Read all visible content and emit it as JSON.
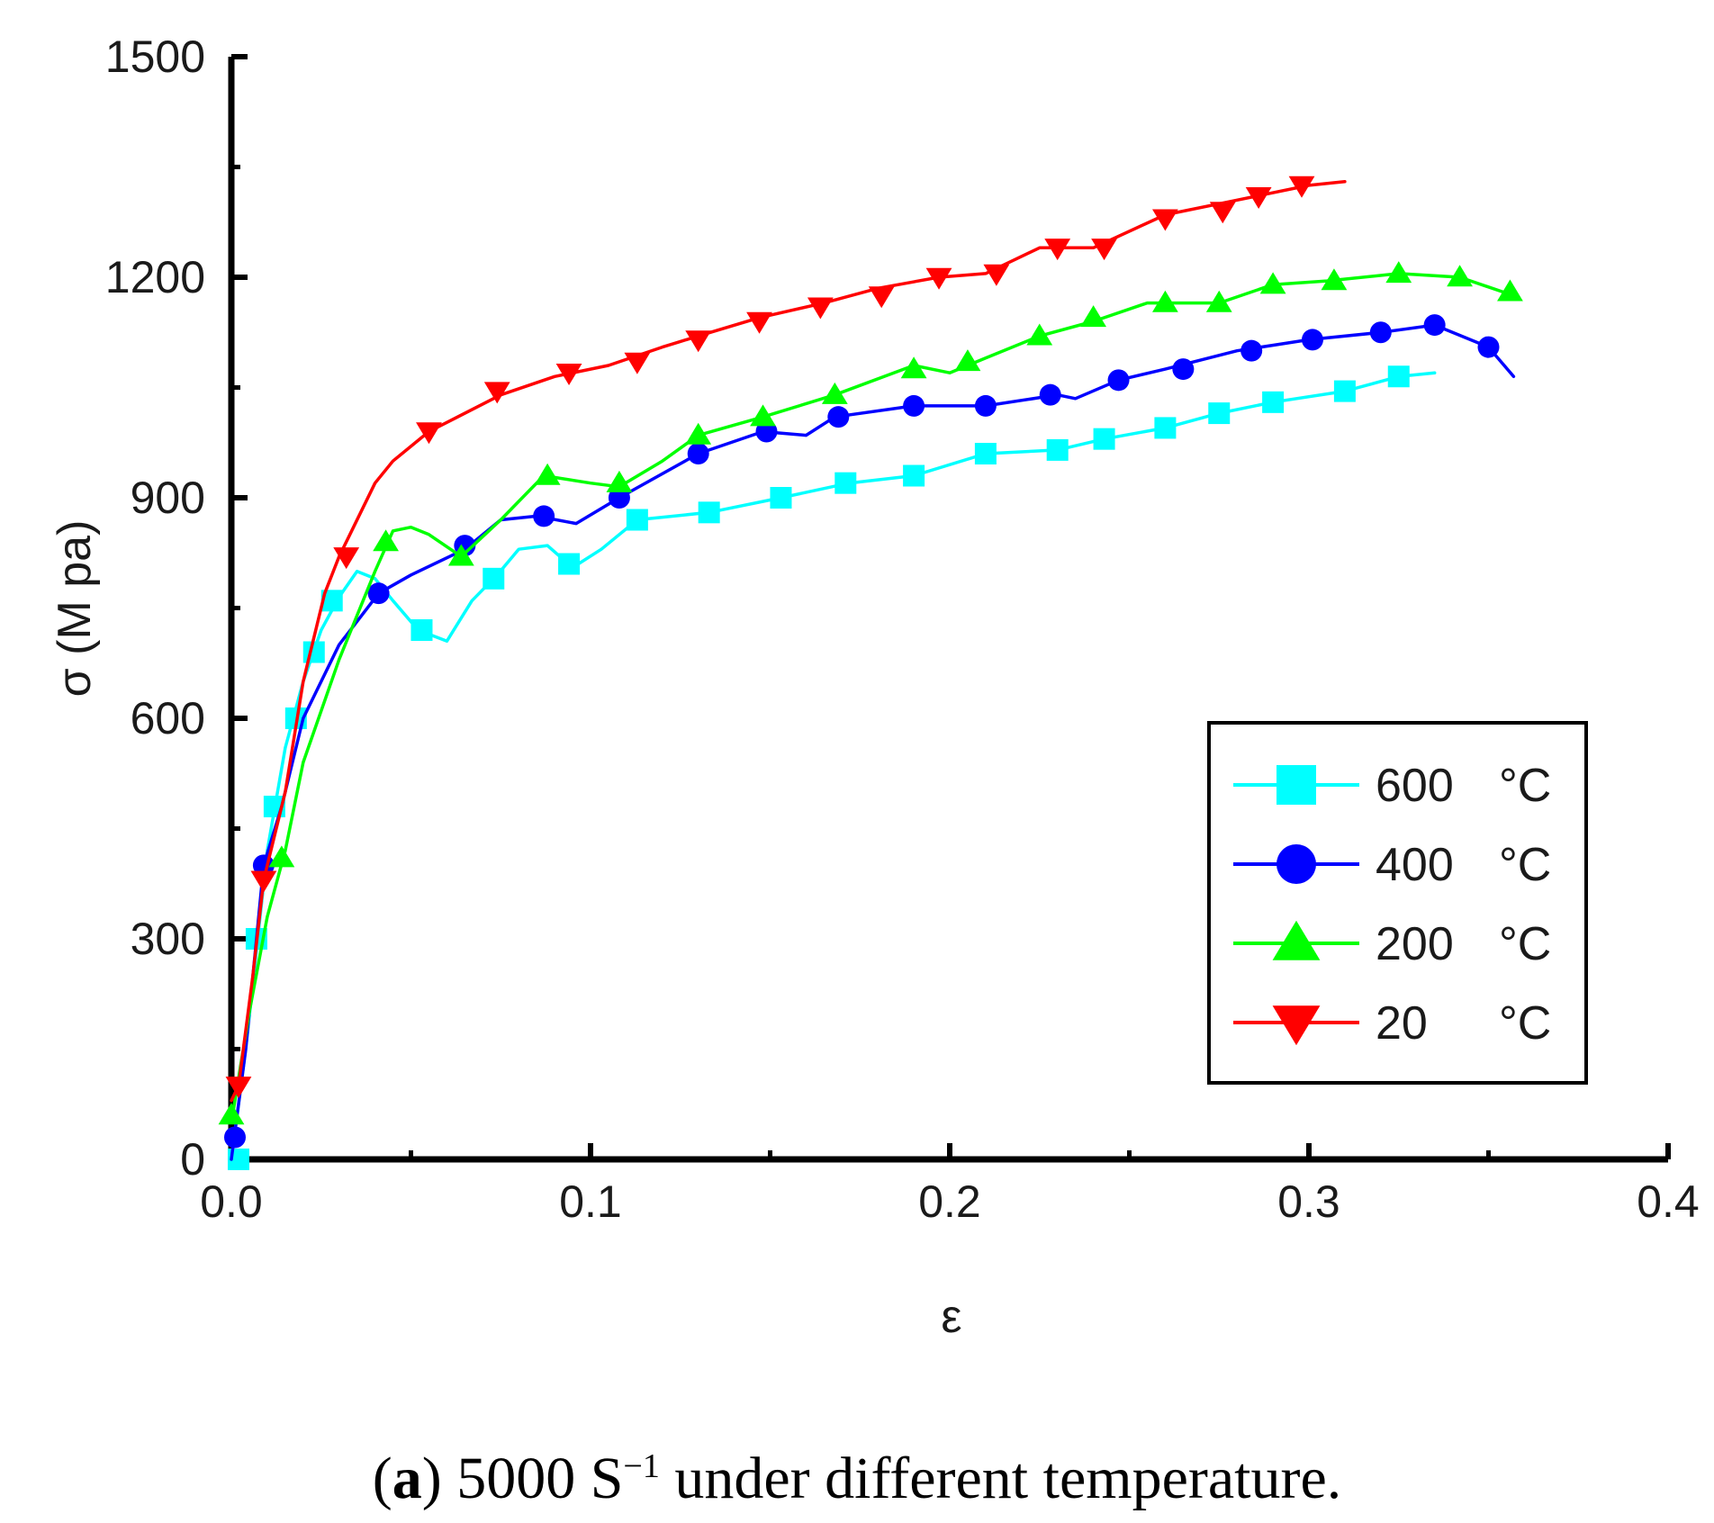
{
  "chart_data": {
    "type": "line",
    "title": "",
    "xlabel": "ε",
    "ylabel": "σ (M pa)",
    "xlim": [
      0.0,
      0.4
    ],
    "ylim": [
      0,
      1500
    ],
    "xticks": [
      "0.0",
      "0.1",
      "0.2",
      "0.3",
      "0.4"
    ],
    "yticks": [
      "0",
      "300",
      "600",
      "900",
      "1200",
      "1500"
    ],
    "legend_position": "lower-right",
    "series": [
      {
        "name": "600",
        "unit": "°C",
        "color": "#00ffff",
        "marker": "square",
        "x": [
          0.0,
          0.004,
          0.01,
          0.015,
          0.02,
          0.025,
          0.03,
          0.035,
          0.04,
          0.045,
          0.052,
          0.06,
          0.067,
          0.074,
          0.08,
          0.088,
          0.095,
          0.103,
          0.113,
          0.133,
          0.153,
          0.172,
          0.19,
          0.21,
          0.23,
          0.243,
          0.26,
          0.275,
          0.29,
          0.31,
          0.325,
          0.335
        ],
        "y": [
          0,
          150,
          420,
          560,
          650,
          720,
          765,
          800,
          790,
          760,
          720,
          705,
          760,
          795,
          830,
          835,
          805,
          830,
          870,
          880,
          900,
          920,
          930,
          960,
          965,
          980,
          995,
          1015,
          1030,
          1045,
          1065,
          1070
        ],
        "marker_x": [
          0.002,
          0.007,
          0.012,
          0.018,
          0.023,
          0.028,
          0.053,
          0.073,
          0.094,
          0.113,
          0.133,
          0.153,
          0.171,
          0.19,
          0.21,
          0.23,
          0.243,
          0.26,
          0.275,
          0.29,
          0.31,
          0.325
        ],
        "marker_y": [
          0,
          300,
          480,
          600,
          690,
          760,
          720,
          790,
          810,
          870,
          880,
          900,
          920,
          930,
          960,
          965,
          980,
          995,
          1015,
          1030,
          1045,
          1065
        ]
      },
      {
        "name": "400",
        "unit": "°C",
        "color": "#0000ff",
        "marker": "circle",
        "x": [
          0.0,
          0.004,
          0.009,
          0.014,
          0.02,
          0.03,
          0.041,
          0.05,
          0.065,
          0.075,
          0.085,
          0.096,
          0.108,
          0.13,
          0.148,
          0.16,
          0.168,
          0.19,
          0.21,
          0.23,
          0.235,
          0.247,
          0.26,
          0.28,
          0.3,
          0.32,
          0.335,
          0.35,
          0.357
        ],
        "y": [
          0,
          150,
          400,
          480,
          600,
          700,
          770,
          795,
          830,
          870,
          875,
          865,
          900,
          960,
          990,
          985,
          1010,
          1025,
          1025,
          1040,
          1035,
          1060,
          1075,
          1100,
          1115,
          1125,
          1135,
          1105,
          1065
        ],
        "marker_x": [
          0.001,
          0.009,
          0.041,
          0.065,
          0.087,
          0.108,
          0.13,
          0.149,
          0.169,
          0.19,
          0.21,
          0.228,
          0.247,
          0.265,
          0.284,
          0.301,
          0.32,
          0.335,
          0.35
        ],
        "marker_y": [
          30,
          400,
          770,
          835,
          875,
          900,
          960,
          990,
          1010,
          1025,
          1025,
          1040,
          1060,
          1075,
          1100,
          1115,
          1125,
          1135,
          1105
        ]
      },
      {
        "name": "200",
        "unit": "°C",
        "color": "#00ff00",
        "marker": "triangle-up",
        "x": [
          0.0,
          0.005,
          0.01,
          0.015,
          0.02,
          0.03,
          0.04,
          0.045,
          0.05,
          0.055,
          0.064,
          0.075,
          0.087,
          0.1,
          0.108,
          0.12,
          0.13,
          0.148,
          0.168,
          0.19,
          0.2,
          0.21,
          0.225,
          0.24,
          0.255,
          0.275,
          0.29,
          0.305,
          0.325,
          0.342,
          0.357
        ],
        "y": [
          50,
          200,
          330,
          420,
          540,
          680,
          800,
          855,
          860,
          850,
          820,
          870,
          930,
          920,
          915,
          950,
          985,
          1010,
          1040,
          1080,
          1070,
          1090,
          1120,
          1140,
          1165,
          1165,
          1190,
          1195,
          1205,
          1200,
          1175
        ],
        "marker_x": [
          0.0,
          0.014,
          0.043,
          0.064,
          0.088,
          0.108,
          0.13,
          0.148,
          0.168,
          0.19,
          0.205,
          0.225,
          0.24,
          0.26,
          0.275,
          0.29,
          0.307,
          0.325,
          0.342,
          0.356
        ],
        "marker_y": [
          60,
          410,
          840,
          820,
          930,
          920,
          985,
          1010,
          1040,
          1075,
          1085,
          1120,
          1145,
          1165,
          1165,
          1190,
          1195,
          1205,
          1200,
          1180
        ]
      },
      {
        "name": "20",
        "unit": "°C",
        "color": "#ff0000",
        "marker": "triangle-down",
        "x": [
          0.0,
          0.002,
          0.006,
          0.009,
          0.015,
          0.02,
          0.026,
          0.03,
          0.033,
          0.04,
          0.045,
          0.055,
          0.075,
          0.09,
          0.105,
          0.12,
          0.13,
          0.147,
          0.165,
          0.18,
          0.197,
          0.21,
          0.225,
          0.24,
          0.26,
          0.28,
          0.3,
          0.31
        ],
        "y": [
          80,
          100,
          250,
          380,
          500,
          650,
          770,
          820,
          850,
          920,
          950,
          990,
          1040,
          1065,
          1080,
          1105,
          1120,
          1145,
          1165,
          1185,
          1200,
          1205,
          1240,
          1240,
          1285,
          1305,
          1325,
          1330
        ],
        "marker_x": [
          0.002,
          0.009,
          0.032,
          0.055,
          0.074,
          0.094,
          0.113,
          0.13,
          0.147,
          0.164,
          0.181,
          0.197,
          0.213,
          0.23,
          0.243,
          0.26,
          0.276,
          0.286,
          0.298
        ],
        "marker_y": [
          100,
          380,
          820,
          990,
          1045,
          1070,
          1085,
          1115,
          1140,
          1160,
          1175,
          1200,
          1205,
          1240,
          1240,
          1280,
          1290,
          1310,
          1325
        ]
      }
    ]
  },
  "caption": {
    "label": "a",
    "text_before": "5000 S",
    "superscript": "−1",
    "text_after": " under different temperature."
  }
}
